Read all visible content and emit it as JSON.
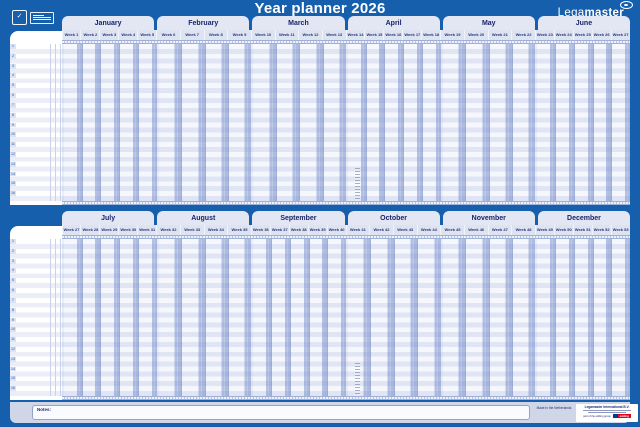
{
  "title": "Year planner 2026",
  "brand": {
    "name_light": "Lega",
    "name_bold": "master"
  },
  "panels": {
    "top": {
      "months": [
        {
          "name": "January",
          "weeks": [
            "Week 1",
            "Week 2",
            "Week 3",
            "Week 4",
            "Week 5"
          ]
        },
        {
          "name": "February",
          "weeks": [
            "Week 6",
            "Week 7",
            "Week 8",
            "Week 9"
          ]
        },
        {
          "name": "March",
          "weeks": [
            "Week 10",
            "Week 11",
            "Week 12",
            "Week 13"
          ]
        },
        {
          "name": "April",
          "weeks": [
            "Week 14",
            "Week 15",
            "Week 16",
            "Week 17",
            "Week 18"
          ]
        },
        {
          "name": "May",
          "weeks": [
            "Week 19",
            "Week 20",
            "Week 21",
            "Week 22"
          ]
        },
        {
          "name": "June",
          "weeks": [
            "Week 23",
            "Week 24",
            "Week 25",
            "Week 26",
            "Week 27"
          ]
        }
      ]
    },
    "bottom": {
      "months": [
        {
          "name": "July",
          "weeks": [
            "Week 27",
            "Week 28",
            "Week 29",
            "Week 30",
            "Week 31"
          ]
        },
        {
          "name": "August",
          "weeks": [
            "Week 32",
            "Week 33",
            "Week 34",
            "Week 35"
          ]
        },
        {
          "name": "September",
          "weeks": [
            "Week 36",
            "Week 37",
            "Week 38",
            "Week 39",
            "Week 40"
          ]
        },
        {
          "name": "October",
          "weeks": [
            "Week 41",
            "Week 42",
            "Week 43",
            "Week 44"
          ]
        },
        {
          "name": "November",
          "weeks": [
            "Week 45",
            "Week 46",
            "Week 47",
            "Week 48"
          ]
        },
        {
          "name": "December",
          "weeks": [
            "Week 49",
            "Week 50",
            "Week 51",
            "Week 52",
            "Week 53"
          ]
        }
      ]
    }
  },
  "row_numbers": [
    "1",
    "2",
    "3",
    "4",
    "5",
    "6",
    "7",
    "8",
    "9",
    "10",
    "11",
    "12",
    "13",
    "14",
    "15",
    "16"
  ],
  "footer": {
    "notes_label": "Notes:",
    "made_in": "Made in the Netherlands",
    "company_name": "Legamaster International B.V.",
    "group_label": "part of the edding group",
    "edding_label": "edding"
  },
  "colors": {
    "background_blue": "#155fac",
    "accent_navy": "#1c2a6e",
    "tab_light": "#e3e7f4",
    "weekend_blue": "#b4c1e4",
    "edding_red": "#e2001a",
    "edding_blue": "#003d8f"
  }
}
